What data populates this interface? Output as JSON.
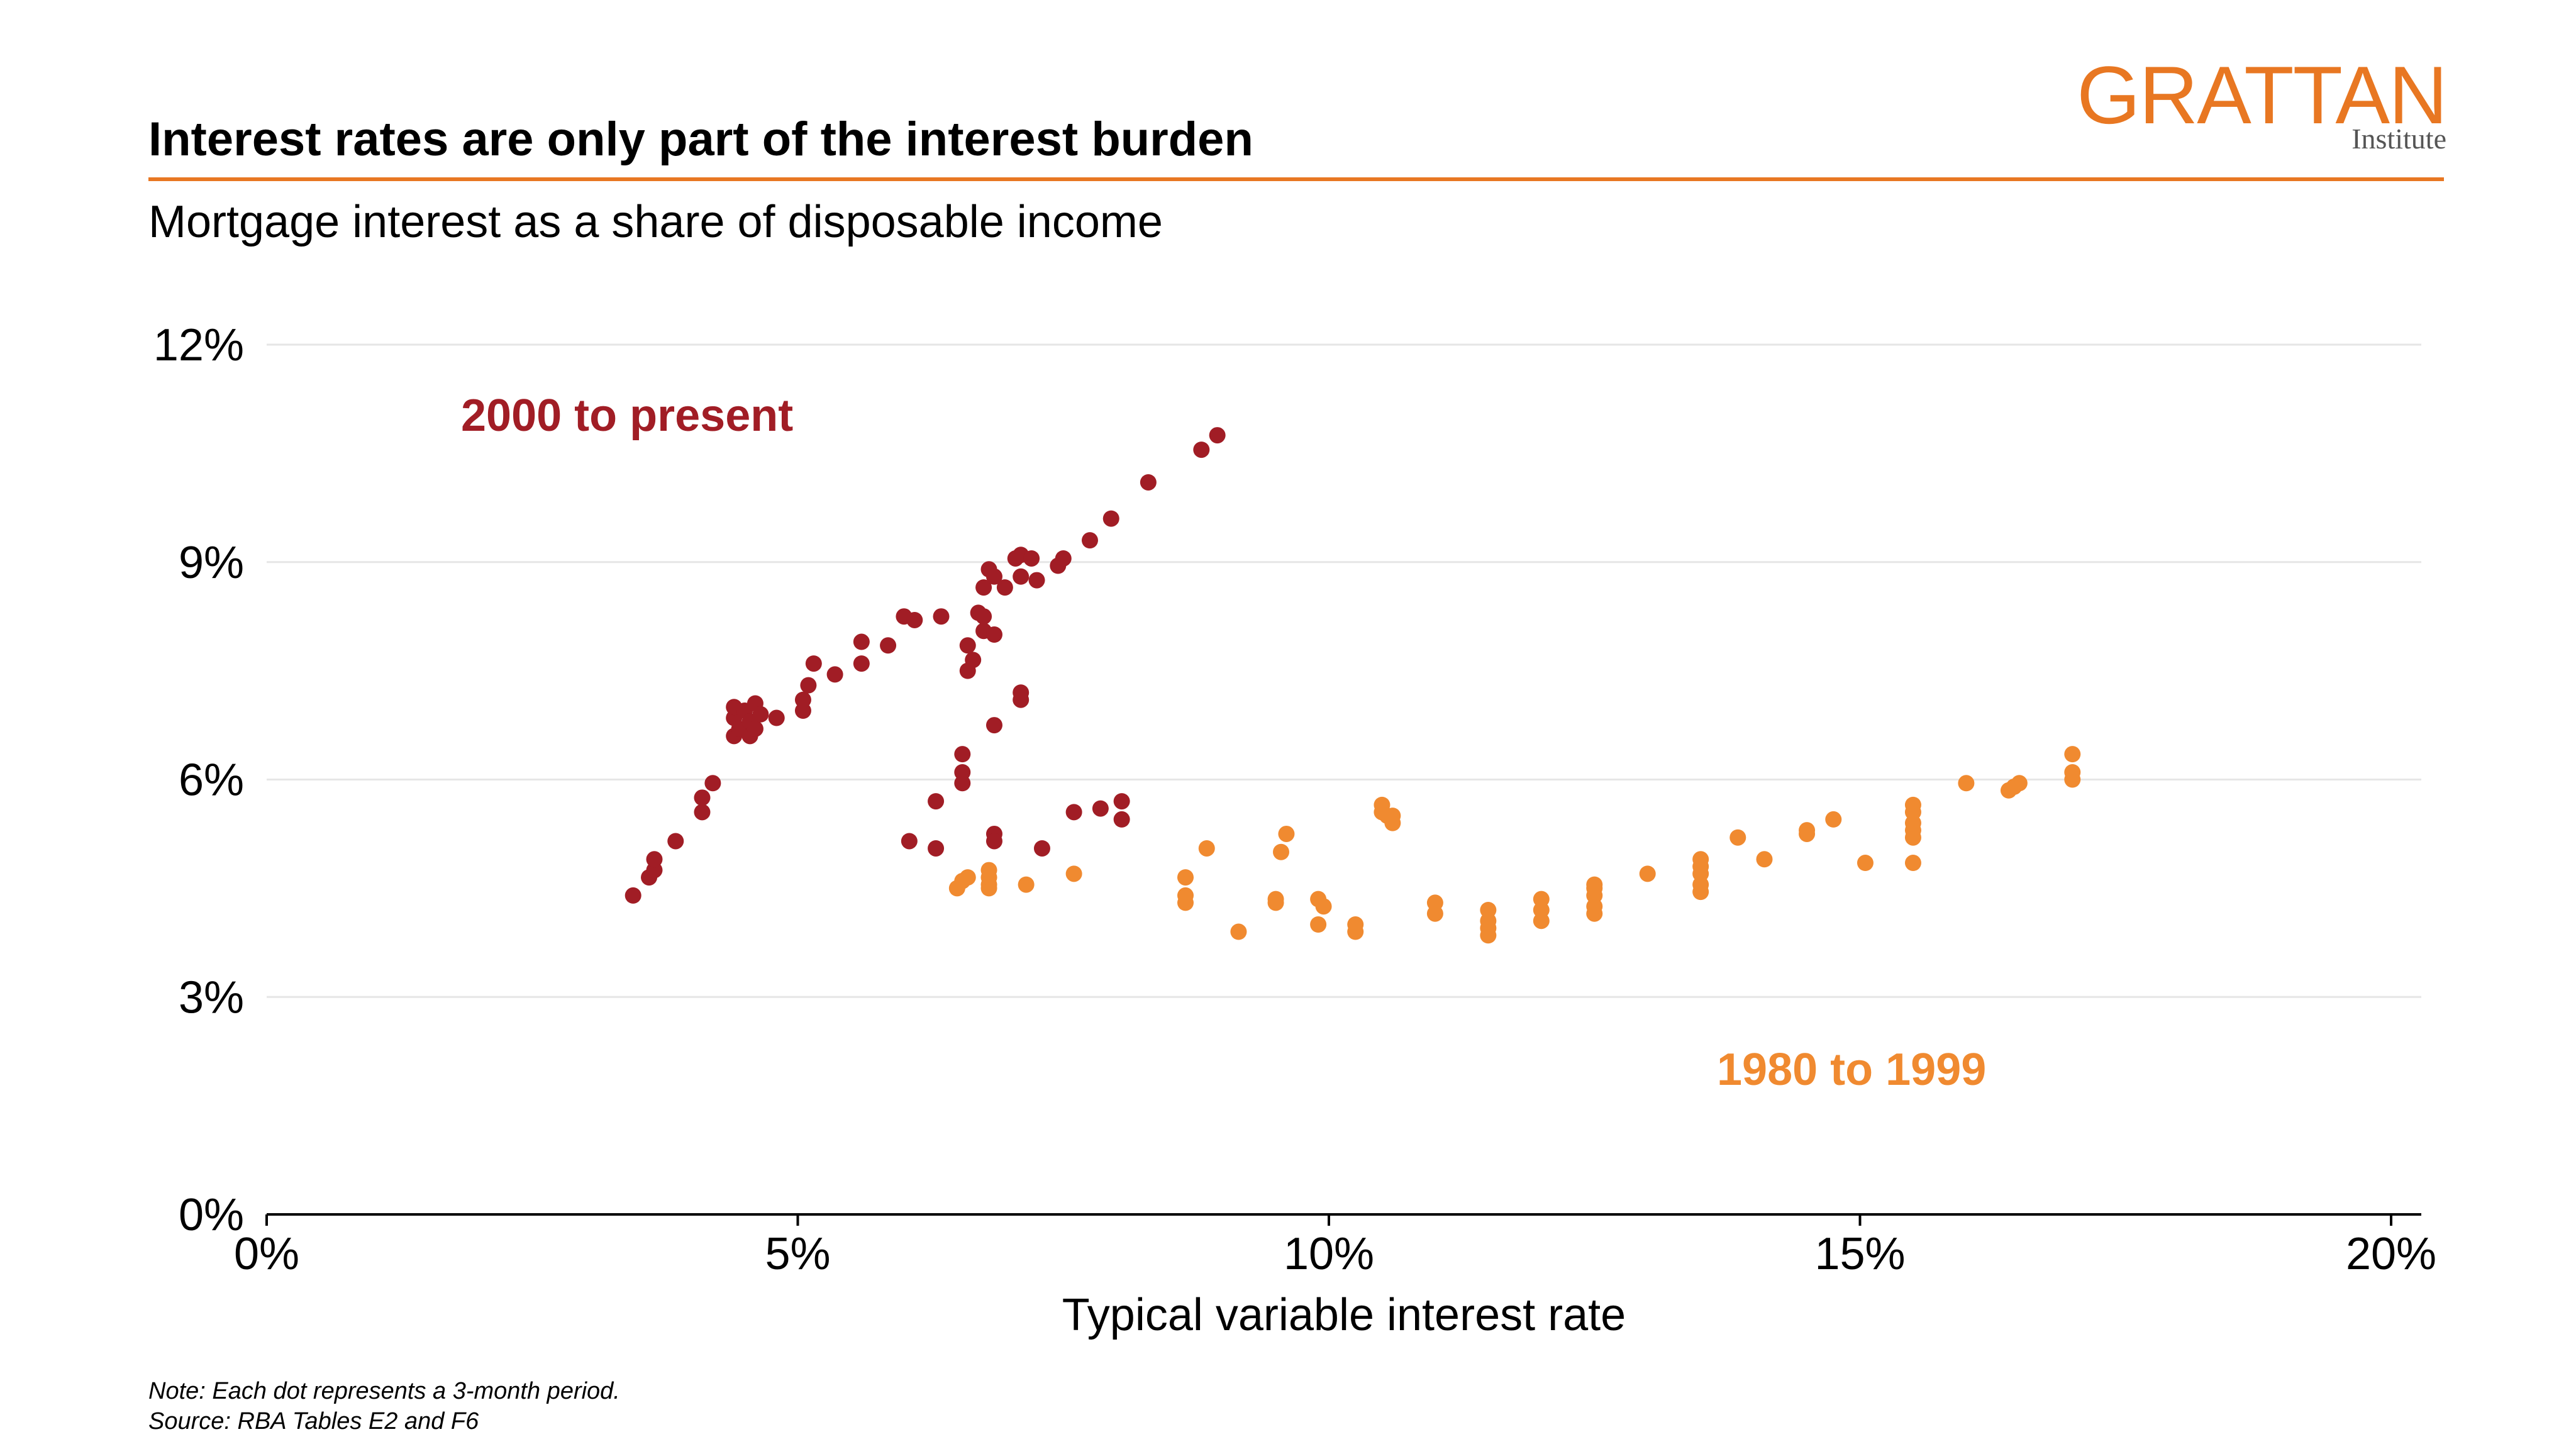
{
  "header": {
    "title": "Interest rates are only part of the interest burden",
    "subtitle": "Mortgage interest as a share of disposable income"
  },
  "logo": {
    "name": "GRATTAN",
    "sub": "Institute"
  },
  "notes": {
    "note": "Note: Each dot represents a 3-month period.",
    "source": "Source: RBA Tables E2 and F6"
  },
  "colors": {
    "recent": "#A11D25",
    "earlier": "#F08A30",
    "accent": "#E87722",
    "grid": "#E6E6E6"
  },
  "chart_data": {
    "type": "scatter",
    "title": "Interest rates are only part of the interest burden",
    "subtitle": "Mortgage interest as a share of disposable income",
    "xlabel": "Typical variable interest rate",
    "ylabel": "",
    "xlim": [
      0,
      20
    ],
    "ylim": [
      0,
      12
    ],
    "xticks": [
      "0%",
      "5%",
      "10%",
      "15%",
      "20%"
    ],
    "yticks": [
      "0%",
      "3%",
      "6%",
      "9%",
      "12%"
    ],
    "grid": "horizontal",
    "legend": "direct labels",
    "series": [
      {
        "name": "2000 to present",
        "color": "#A11D25",
        "points": [
          [
            3.45,
            4.4
          ],
          [
            3.6,
            4.65
          ],
          [
            3.65,
            4.75
          ],
          [
            3.65,
            4.9
          ],
          [
            3.85,
            5.15
          ],
          [
            4.1,
            5.55
          ],
          [
            4.1,
            5.75
          ],
          [
            4.2,
            5.95
          ],
          [
            4.4,
            6.6
          ],
          [
            4.4,
            6.85
          ],
          [
            4.4,
            7.0
          ],
          [
            4.45,
            6.7
          ],
          [
            4.5,
            6.95
          ],
          [
            4.55,
            6.6
          ],
          [
            4.55,
            6.8
          ],
          [
            4.6,
            6.7
          ],
          [
            4.6,
            7.05
          ],
          [
            4.65,
            6.9
          ],
          [
            4.8,
            6.85
          ],
          [
            5.05,
            6.95
          ],
          [
            5.05,
            7.1
          ],
          [
            5.1,
            7.3
          ],
          [
            5.15,
            7.6
          ],
          [
            5.35,
            7.45
          ],
          [
            5.6,
            7.6
          ],
          [
            5.6,
            7.9
          ],
          [
            5.85,
            7.85
          ],
          [
            6.0,
            8.25
          ],
          [
            6.1,
            8.2
          ],
          [
            6.05,
            5.15
          ],
          [
            6.3,
            5.05
          ],
          [
            6.3,
            5.7
          ],
          [
            6.35,
            8.25
          ],
          [
            6.55,
            5.95
          ],
          [
            6.55,
            6.1
          ],
          [
            6.55,
            6.35
          ],
          [
            6.6,
            7.5
          ],
          [
            6.6,
            7.85
          ],
          [
            6.65,
            7.65
          ],
          [
            6.7,
            8.3
          ],
          [
            6.75,
            8.25
          ],
          [
            6.75,
            8.05
          ],
          [
            6.75,
            8.65
          ],
          [
            6.8,
            8.9
          ],
          [
            6.85,
            8.8
          ],
          [
            6.85,
            8.0
          ],
          [
            6.85,
            6.75
          ],
          [
            6.85,
            5.25
          ],
          [
            6.85,
            5.15
          ],
          [
            6.95,
            8.65
          ],
          [
            7.05,
            9.05
          ],
          [
            7.1,
            9.1
          ],
          [
            7.1,
            8.8
          ],
          [
            7.1,
            7.1
          ],
          [
            7.1,
            7.2
          ],
          [
            7.2,
            9.05
          ],
          [
            7.25,
            8.75
          ],
          [
            7.3,
            5.05
          ],
          [
            7.45,
            8.95
          ],
          [
            7.5,
            9.05
          ],
          [
            7.6,
            5.55
          ],
          [
            7.75,
            9.3
          ],
          [
            7.85,
            5.6
          ],
          [
            7.95,
            9.6
          ],
          [
            8.05,
            5.45
          ],
          [
            8.05,
            5.7
          ],
          [
            8.3,
            10.1
          ],
          [
            8.8,
            10.55
          ],
          [
            8.95,
            10.75
          ]
        ]
      },
      {
        "name": "1980 to 1999",
        "color": "#F08A30",
        "points": [
          [
            6.5,
            4.5
          ],
          [
            6.55,
            4.6
          ],
          [
            6.6,
            4.65
          ],
          [
            6.8,
            4.5
          ],
          [
            6.8,
            4.55
          ],
          [
            6.8,
            4.65
          ],
          [
            6.8,
            4.75
          ],
          [
            7.15,
            4.55
          ],
          [
            7.6,
            4.7
          ],
          [
            8.65,
            4.3
          ],
          [
            8.65,
            4.4
          ],
          [
            8.65,
            4.65
          ],
          [
            8.85,
            5.05
          ],
          [
            9.15,
            3.9
          ],
          [
            9.5,
            4.3
          ],
          [
            9.5,
            4.35
          ],
          [
            9.55,
            5.0
          ],
          [
            9.6,
            5.25
          ],
          [
            9.9,
            4.0
          ],
          [
            9.9,
            4.35
          ],
          [
            9.95,
            4.25
          ],
          [
            10.25,
            3.9
          ],
          [
            10.25,
            4.0
          ],
          [
            10.5,
            5.55
          ],
          [
            10.5,
            5.65
          ],
          [
            10.55,
            5.5
          ],
          [
            10.6,
            5.4
          ],
          [
            10.6,
            5.5
          ],
          [
            11.0,
            4.15
          ],
          [
            11.0,
            4.3
          ],
          [
            11.5,
            3.85
          ],
          [
            11.5,
            3.95
          ],
          [
            11.5,
            4.05
          ],
          [
            11.5,
            4.2
          ],
          [
            12.0,
            4.05
          ],
          [
            12.0,
            4.2
          ],
          [
            12.0,
            4.35
          ],
          [
            12.5,
            4.15
          ],
          [
            12.5,
            4.25
          ],
          [
            12.5,
            4.4
          ],
          [
            12.5,
            4.5
          ],
          [
            12.5,
            4.55
          ],
          [
            13.0,
            4.7
          ],
          [
            13.5,
            4.45
          ],
          [
            13.5,
            4.55
          ],
          [
            13.5,
            4.7
          ],
          [
            13.5,
            4.8
          ],
          [
            13.5,
            4.9
          ],
          [
            13.85,
            5.2
          ],
          [
            14.1,
            4.9
          ],
          [
            14.5,
            5.25
          ],
          [
            14.5,
            5.3
          ],
          [
            14.75,
            5.45
          ],
          [
            15.05,
            4.85
          ],
          [
            15.5,
            4.85
          ],
          [
            15.5,
            5.2
          ],
          [
            15.5,
            5.3
          ],
          [
            15.5,
            5.4
          ],
          [
            15.5,
            5.55
          ],
          [
            15.5,
            5.65
          ],
          [
            16.0,
            5.95
          ],
          [
            16.4,
            5.85
          ],
          [
            16.45,
            5.9
          ],
          [
            16.5,
            5.95
          ],
          [
            17.0,
            6.0
          ],
          [
            17.0,
            6.1
          ],
          [
            17.0,
            6.35
          ]
        ]
      }
    ],
    "annotations": [
      "2000 to present",
      "1980 to 1999"
    ]
  }
}
